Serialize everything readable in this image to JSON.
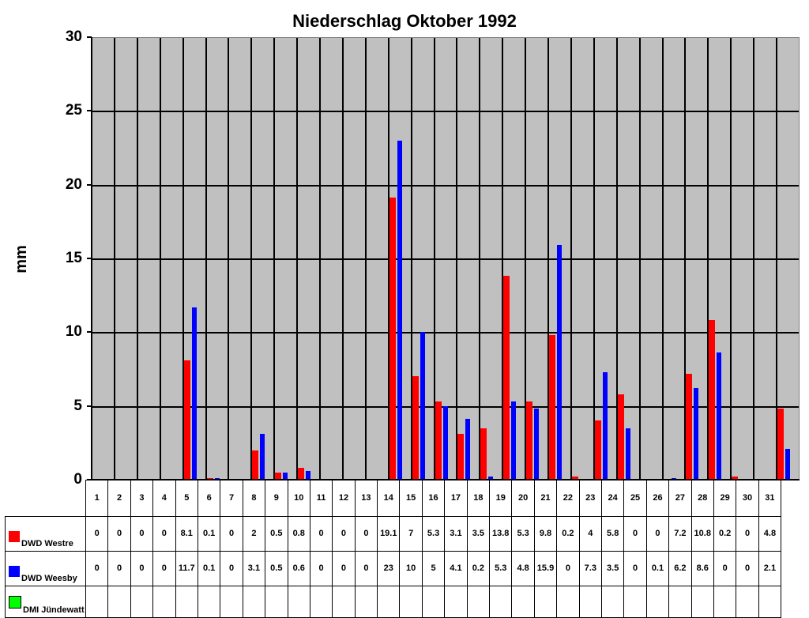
{
  "chart_data": {
    "type": "bar",
    "title": "Niederschlag Oktober 1992",
    "xlabel": "",
    "ylabel": "mm",
    "ylim": [
      0,
      30
    ],
    "yticks": [
      0,
      5,
      10,
      15,
      20,
      25,
      30
    ],
    "grid": true,
    "legend_position": "table-left",
    "categories": [
      "1",
      "2",
      "3",
      "4",
      "5",
      "6",
      "7",
      "8",
      "9",
      "10",
      "11",
      "12",
      "13",
      "14",
      "15",
      "16",
      "17",
      "18",
      "19",
      "20",
      "21",
      "22",
      "23",
      "24",
      "25",
      "26",
      "27",
      "28",
      "29",
      "30",
      "31"
    ],
    "series": [
      {
        "name": "DWD Westre",
        "color": "#ff0000",
        "values": [
          0,
          0,
          0,
          0,
          8.1,
          0.1,
          0,
          2,
          0.5,
          0.8,
          0,
          0,
          0,
          19.1,
          7,
          5.3,
          3.1,
          3.5,
          13.8,
          5.3,
          9.8,
          0.2,
          4,
          5.8,
          0,
          0,
          7.2,
          10.8,
          0.2,
          0,
          4.8
        ]
      },
      {
        "name": "DWD Weesby",
        "color": "#0000ff",
        "values": [
          0,
          0,
          0,
          0,
          11.7,
          0.1,
          0,
          3.1,
          0.5,
          0.6,
          0,
          0,
          0,
          23,
          10,
          5,
          4.1,
          0.2,
          5.3,
          4.8,
          15.9,
          0,
          7.3,
          3.5,
          0,
          0.1,
          6.2,
          8.6,
          0,
          0,
          2.1
        ]
      },
      {
        "name": "DMI Jündewatt",
        "color": "#00ff00",
        "values": [
          null,
          null,
          null,
          null,
          null,
          null,
          null,
          null,
          null,
          null,
          null,
          null,
          null,
          null,
          null,
          null,
          null,
          null,
          null,
          null,
          null,
          null,
          null,
          null,
          null,
          null,
          null,
          null,
          null,
          null,
          null
        ]
      }
    ]
  },
  "colors": {
    "plot_bg": "#c0c0c0",
    "westre": "#ff0000",
    "weesby": "#0000ff",
    "juendewatt": "#00ff00"
  }
}
